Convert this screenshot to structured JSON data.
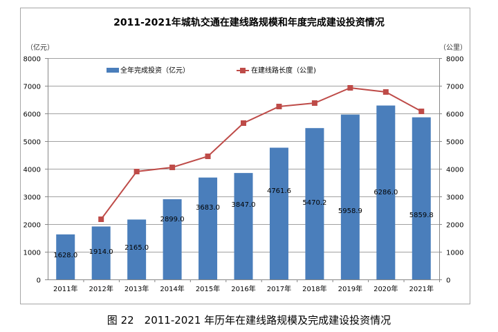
{
  "chart_data": {
    "type": "bar+line",
    "title": "2011-2021年城轨交通在建线路规模和年度完成建设投资情况",
    "caption": "图 22　2011-2021 年历年在建线路规模及完成建设投资情况",
    "categories": [
      "2011年",
      "2012年",
      "2013年",
      "2014年",
      "2015年",
      "2016年",
      "2017年",
      "2018年",
      "2019年",
      "2020年",
      "2021年"
    ],
    "series": [
      {
        "name": "全年完成投资（亿元）",
        "type": "bar",
        "axis": "left",
        "color": "#4A7EBB",
        "values": [
          1628.0,
          1914.0,
          2165.0,
          2899.0,
          3683.0,
          3847.0,
          4761.6,
          5470.2,
          5958.9,
          6286.0,
          5859.8
        ],
        "labels": [
          "1628.0",
          "1914.0",
          "2165.0",
          "2899.0",
          "3683.0",
          "3847.0",
          "4761.6",
          "5470.2",
          "5958.9",
          "6286.0",
          "5859.8"
        ]
      },
      {
        "name": "在建线路长度（公里)",
        "type": "line",
        "axis": "right",
        "color": "#BE4B48",
        "values": [
          null,
          2175,
          3900,
          4050,
          4450,
          5650,
          6250,
          6375,
          6925,
          6775,
          6075
        ]
      }
    ],
    "ylabel_left": "（亿元）",
    "ylabel_right": "（公里）",
    "ylim_left": [
      0,
      8000
    ],
    "ylim_right": [
      0,
      8000
    ],
    "yticks": [
      0,
      1000,
      2000,
      3000,
      4000,
      5000,
      6000,
      7000,
      8000
    ],
    "grid": true,
    "legend_position": "top"
  }
}
